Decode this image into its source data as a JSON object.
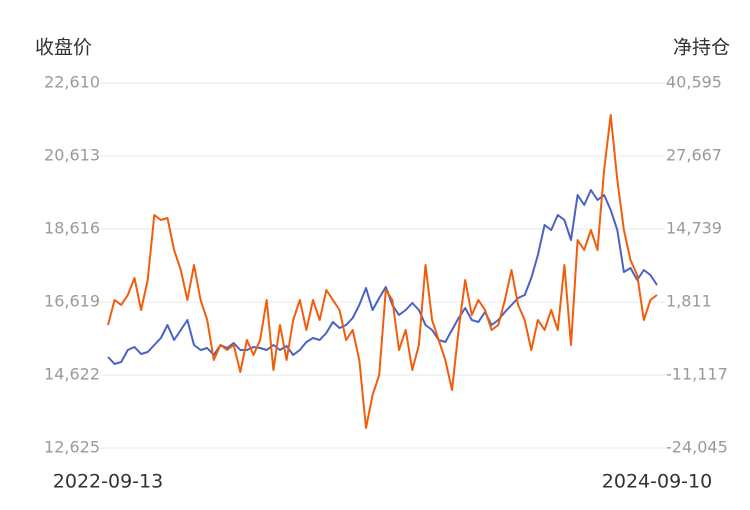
{
  "chart_data": {
    "type": "line",
    "y_label": "收盘价",
    "y2_label": "净持仓",
    "categories": [
      "2022-09-13",
      null,
      null,
      null,
      null,
      null,
      null,
      null,
      null,
      null,
      null,
      null,
      null,
      null,
      null,
      null,
      null,
      null,
      null,
      null,
      null,
      null,
      null,
      null,
      null,
      null,
      null,
      null,
      null,
      null,
      null,
      null,
      null,
      null,
      null,
      null,
      null,
      null,
      null,
      null,
      null,
      null,
      null,
      null,
      null,
      null,
      null,
      null,
      null,
      null,
      null,
      null,
      null,
      null,
      null,
      null,
      null,
      null,
      null,
      null,
      null,
      null,
      null,
      null,
      null,
      null,
      null,
      null,
      null,
      null,
      null,
      null,
      null,
      null,
      null,
      null,
      null,
      null,
      null,
      null,
      null,
      null,
      null,
      "2024-09-10"
    ],
    "series": [
      {
        "color": "#4a62c4",
        "axis": "y",
        "values": [
          15115,
          14923,
          14978,
          15306,
          15388,
          15197,
          15251,
          15443,
          15634,
          15990,
          15579,
          15853,
          16127,
          15443,
          15306,
          15361,
          15169,
          15443,
          15361,
          15497,
          15306,
          15306,
          15388,
          15361,
          15306,
          15443,
          15306,
          15415,
          15169,
          15306,
          15525,
          15634,
          15579,
          15771,
          16072,
          15908,
          15990,
          16181,
          16537,
          17002,
          16400,
          16728,
          17029,
          16537,
          16263,
          16400,
          16592,
          16400,
          15990,
          15853,
          15579,
          15525,
          15853,
          16181,
          16455,
          16127,
          16072,
          16345,
          15990,
          16127,
          16345,
          16537,
          16728,
          16811,
          17276,
          17905,
          18725,
          18589,
          18999,
          18862,
          18315,
          19546,
          19273,
          19683,
          19409,
          19546,
          19136,
          18589,
          17440,
          17549,
          17221,
          17494,
          17358,
          17084
        ]
      },
      {
        "color": "#f25d0c",
        "axis": "y2",
        "values": [
          -2263,
          2164,
          1279,
          3050,
          6060,
          393,
          5706,
          17218,
          16332,
          16686,
          11019,
          7477,
          2164,
          8363,
          2164,
          -1378,
          -8462,
          -5805,
          -6691,
          -5805,
          -10587,
          -4920,
          -7576,
          -4920,
          2164,
          -10233,
          -2263,
          -8462,
          -1378,
          2164,
          -3149,
          2164,
          -1378,
          3935,
          2164,
          393,
          -4920,
          -3149,
          -8462,
          -20505,
          -14660,
          -11118,
          3935,
          2164,
          -6691,
          -3149,
          -10233,
          -5805,
          8363,
          -1378,
          -4920,
          -8462,
          -13775,
          -3149,
          5706,
          -492,
          2164,
          393,
          -3149,
          -2263,
          2164,
          7477,
          1279,
          -1378,
          -6691,
          -1378,
          -3149,
          393,
          -3149,
          8363,
          -5805,
          12790,
          11019,
          14561,
          11019,
          25187,
          34928,
          23416,
          14561,
          9248,
          6592,
          -1378,
          2164,
          3050
        ]
      }
    ],
    "ylim": [
      12625,
      22610
    ],
    "yticks": [
      {
        "value": 12625,
        "label": "12,625"
      },
      {
        "value": 14622,
        "label": "14,622"
      },
      {
        "value": 16619,
        "label": "16,619"
      },
      {
        "value": 18616,
        "label": "18,616"
      },
      {
        "value": 20613,
        "label": "20,613"
      },
      {
        "value": 22610,
        "label": "22,610"
      }
    ],
    "y2lim": [
      -24045,
      40595
    ],
    "y2ticks": [
      {
        "value": -24045,
        "label": "-24,045"
      },
      {
        "value": -11117,
        "label": "-11,117"
      },
      {
        "value": 1811,
        "label": "1,811"
      },
      {
        "value": 14739,
        "label": "14,739"
      },
      {
        "value": 27667,
        "label": "27,667"
      },
      {
        "value": 40595,
        "label": "40,595"
      }
    ],
    "grid": true
  }
}
